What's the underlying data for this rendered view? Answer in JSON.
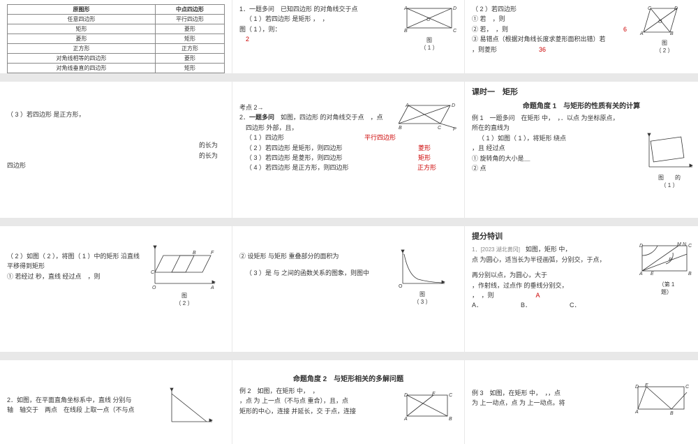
{
  "colors": {
    "background": "#e8e8e8",
    "card": "#ffffff",
    "text": "#333333",
    "accent": "#cc0000",
    "muted": "#888888",
    "table_border": "#888888"
  },
  "grid": {
    "cols": [
      333,
      333,
      334
    ],
    "rows": [
      105,
      195,
      180,
      120
    ],
    "gap": 12
  },
  "table1": {
    "background": "#ffffff",
    "columns": [
      "原图形",
      "中点四边形"
    ],
    "rows": [
      [
        "任意四边形",
        "平行四边形"
      ],
      [
        "矩形",
        "菱形"
      ],
      [
        "菱形",
        "矩形"
      ],
      [
        "正方形",
        "正方形"
      ],
      [
        "对角线相等的四边形",
        "菱形"
      ],
      [
        "对角线垂直的四边形",
        "矩形"
      ],
      [
        "对角线垂直且相等的四边形",
        "正方形"
      ]
    ]
  },
  "c12": {
    "l1": "1．一题多问　已知四边形 的对角线交于点",
    "l2": "（ 1 ）若四边形 是矩形 ，　，",
    "l3": "图（ 1 ），则：",
    "ans": "2",
    "fig": "图",
    "fign": "（ 1 ）",
    "diagram1": {
      "points": {
        "A": "A",
        "B": "B",
        "C": "C",
        "D": "D",
        "O": "O"
      },
      "stroke": "#333"
    }
  },
  "c13": {
    "l1": "（ 2 ）若四边形",
    "l2": "① 若　，则",
    "l3": "② 若，　，则",
    "ans3": "6",
    "l4": "③ 易错点（根据对角线长度求菱形面积出错）若",
    "l5": "，则菱形",
    "ans5": "36",
    "fig": "图",
    "fign": "（ 2 ）",
    "diagram2": {
      "points": {
        "A": "A",
        "B": "B",
        "C": "C",
        "D": "D",
        "O": "O"
      },
      "stroke": "#333"
    }
  },
  "c21": {
    "l1": "（ 3 ）若四边形 是正方形，",
    "l2a": "的长为",
    "l2b": "的长为",
    "l3": "四边形"
  },
  "c22": {
    "l0": "考点 2→",
    "l1a": "2．",
    "l1b": "一题多问",
    "l1c": "　如图，四边形 的对角线交于点　，点",
    "l2": "四边形 外部，且，",
    "r1a": "（ 1 ）四边形",
    "r1b": "平行四边形",
    "r2a": "（ 2 ）若四边形 是矩形，则四边形",
    "r2b": "菱形",
    "r3a": "（ 3 ）若四边形 是菱形，则四边形",
    "r3b": "矩形",
    "r4a": "（ 4 ）若四边形 是正方形，则四边形",
    "r4b": "正方形",
    "diagram": {
      "points": {
        "A": "A",
        "B": "B",
        "C": "C",
        "D": "D",
        "P": "P"
      },
      "stroke": "#333"
    }
  },
  "c23": {
    "title": "课时一　矩形",
    "stitle": "命题角度 1　与矩形的性质有关的计算",
    "l1": "例 1　一题多问　在矩形 中，　，．以点 为坐标原点，",
    "l2": "所在的直线为",
    "l3": "（ 1 ）如图（ 1 ），将矩形 绕点",
    "l4": "，且 经过点",
    "l5": "① 旋转角的大小是＿",
    "l6": "② 点",
    "fig": "图",
    "fign": "（ 1 ）",
    "figsuffix": "的",
    "diagram": {
      "stroke": "#333",
      "axis_marker": "x"
    }
  },
  "c31": {
    "l1": "（ 2 ）如图（ 2 ），将图（ 1 ）中的矩形 沿直线",
    "l2": "平移得到矩形",
    "l3": "① 若经过 秒，直线 经过点　，则",
    "fig": "图",
    "fign": "（ 2 ）",
    "diagram": {
      "points": {
        "O": "O",
        "A": "A",
        "C": "C",
        "B": "B",
        "F": "F"
      },
      "stroke": "#333"
    }
  },
  "c32": {
    "l1": "② 设矩形 与矩形 重叠部分的面积为",
    "l2": "（ 3 ）是 与 之间的函数关系的图象，则图中",
    "fig": "图",
    "fign": "（ 3 ）",
    "curve": {
      "xlim": [
        0,
        6
      ],
      "ylim": [
        0,
        5
      ],
      "stroke": "#333",
      "values": [
        5.0,
        3.2,
        2.2,
        1.6,
        1.2,
        0.9,
        0.7
      ]
    }
  },
  "c33": {
    "title": "提分特训",
    "src": "1．[2023 湖北黄冈]　",
    "l1": "如图，矩形 中，",
    "l2": "点 为圆心，适当长为半径画弧，分别交，于点，",
    "l3": "再分别以点，为圆心，大于",
    "l4": "，作射线，过点作 的垂线分别交，",
    "l5": "，　，则",
    "ans": "A",
    "optA": "A．",
    "optB": "B．",
    "optC": "C．",
    "fig": "（第 1",
    "fign": "题）",
    "diagram": {
      "points": {
        "A": "A",
        "B": "B",
        "C": "C",
        "D": "D",
        "E": "E",
        "M": "M",
        "N": "N",
        "P": "P"
      },
      "stroke": "#333"
    }
  },
  "c41": {
    "l1": "2．如图，在平面直角坐标系中，直线 分别与",
    "l2": "轴　轴交于　两点　在线段 上取一点（不与点",
    "diagram": {
      "stroke": "#333"
    }
  },
  "c42": {
    "stitle": "命题角度 2　与矩形相关的多解问题",
    "l1": "例 2　如图，在矩形 中，　，",
    "l2": "，点 为 上一点（不与点 重合），且，点",
    "l3": "矩形的中心，连接 并延长，交 于点，连接",
    "diagram": {
      "points": {
        "A": "A",
        "B": "B",
        "C": "C",
        "D": "D",
        "E": "E"
      },
      "stroke": "#333"
    }
  },
  "c43": {
    "l1": "例 3　如图，在矩形 中，　，，点",
    "l2": "为 上一动点，点 为 上一动点。将",
    "diagram": {
      "points": {
        "A": "A",
        "B": "B",
        "C": "C",
        "D": "D",
        "E": "E"
      },
      "stroke": "#333"
    }
  }
}
